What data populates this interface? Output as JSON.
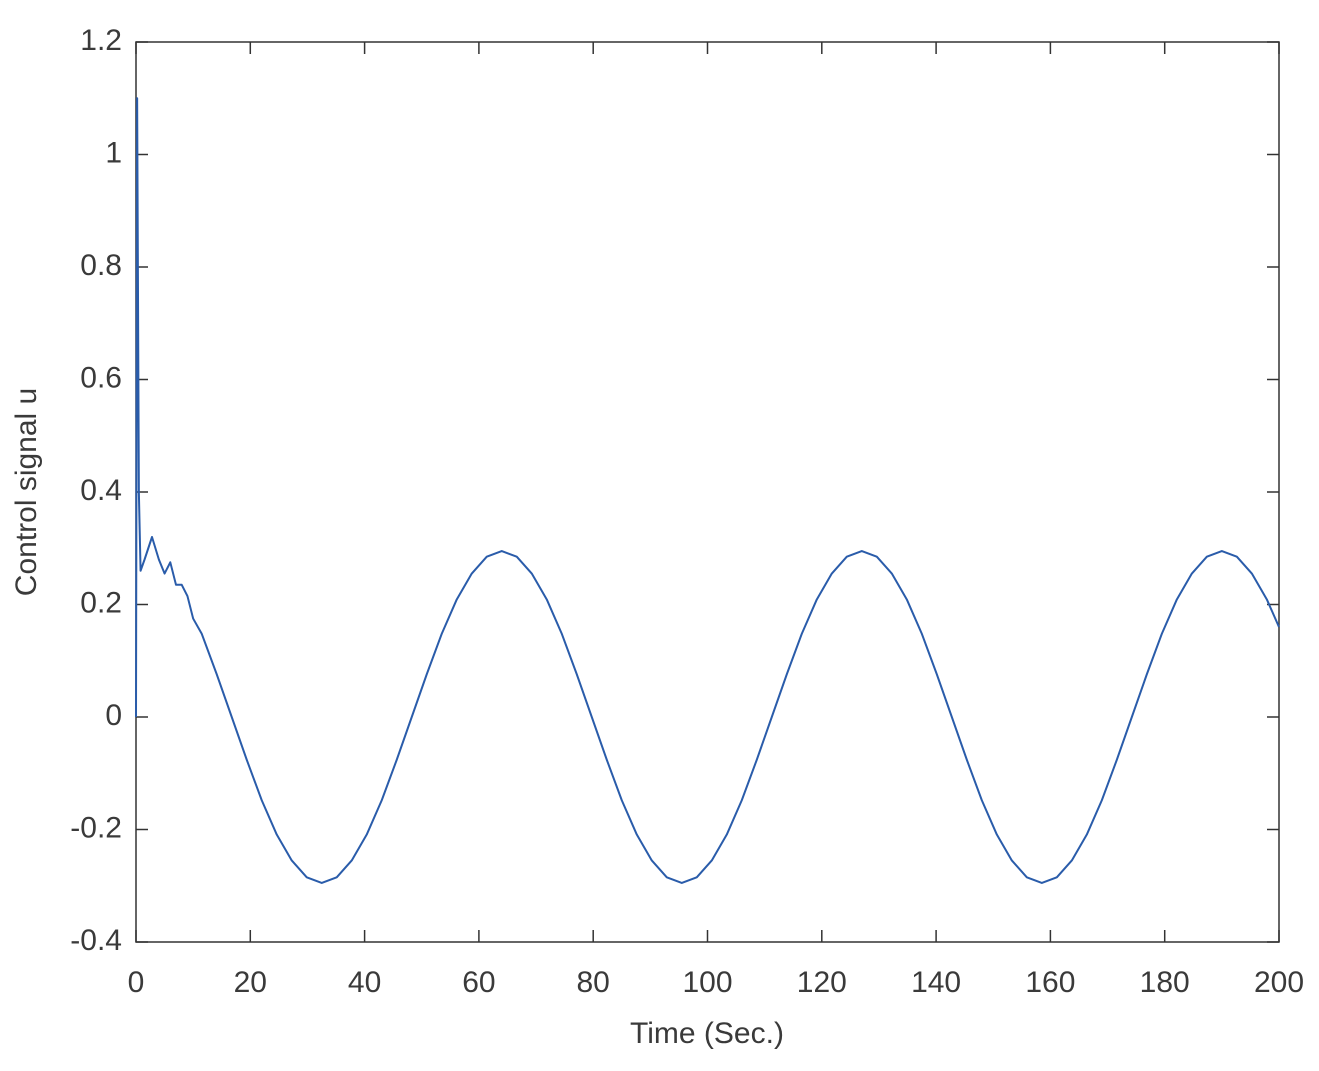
{
  "chart_data": {
    "type": "line",
    "xlabel": "Time (Sec.)",
    "ylabel": "Control signal u",
    "x": [
      0,
      0.2,
      0.5,
      0.8,
      1.5,
      2.8,
      4,
      5,
      6,
      7,
      8,
      9,
      10,
      11.5,
      14.125,
      16.75,
      19.375,
      22,
      24.625,
      27.25,
      29.875,
      32.5,
      35.125,
      37.75,
      40.375,
      43,
      45.625,
      48.25,
      50.875,
      53.5,
      56.125,
      58.75,
      61.375,
      64,
      66.625,
      69.25,
      71.875,
      74.5,
      77.125,
      79.75,
      82.375,
      85,
      87.625,
      90.25,
      92.875,
      95.5,
      98.125,
      100.75,
      103.375,
      106,
      108.625,
      111.25,
      113.875,
      116.5,
      119.125,
      121.75,
      124.375,
      127,
      129.625,
      132.25,
      134.875,
      137.5,
      140.125,
      142.75,
      145.375,
      148,
      150.625,
      153.25,
      155.875,
      158.5,
      161.125,
      163.75,
      166.375,
      169,
      171.625,
      174.25,
      176.875,
      179.5,
      182.125,
      184.75,
      187.375,
      190,
      192.625,
      195.25,
      197.875,
      200
    ],
    "values": [
      0,
      1.1,
      0.4,
      0.26,
      0.28,
      0.32,
      0.28,
      0.255,
      0.275,
      0.235,
      0.235,
      0.215,
      0.175,
      0.148,
      0.076,
      0,
      -0.076,
      -0.148,
      -0.209,
      -0.255,
      -0.285,
      -0.295,
      -0.285,
      -0.255,
      -0.209,
      -0.148,
      -0.076,
      0,
      0.076,
      0.148,
      0.209,
      0.255,
      0.285,
      0.295,
      0.285,
      0.255,
      0.209,
      0.148,
      0.076,
      0,
      -0.076,
      -0.148,
      -0.209,
      -0.255,
      -0.285,
      -0.295,
      -0.285,
      -0.255,
      -0.209,
      -0.148,
      -0.076,
      0,
      0.076,
      0.148,
      0.209,
      0.255,
      0.285,
      0.295,
      0.285,
      0.255,
      0.209,
      0.148,
      0.076,
      0,
      -0.076,
      -0.148,
      -0.209,
      -0.255,
      -0.285,
      -0.295,
      -0.285,
      -0.255,
      -0.209,
      -0.148,
      -0.076,
      0,
      0.076,
      0.148,
      0.209,
      0.255,
      0.285,
      0.295,
      0.285,
      0.255,
      0.209,
      0.16
    ],
    "color": "#2a5caa",
    "xlim": [
      0,
      200
    ],
    "xticks": [
      0,
      20,
      40,
      60,
      80,
      100,
      120,
      140,
      160,
      180,
      200
    ],
    "ylim": [
      -0.4,
      1.2
    ],
    "yticks": [
      -0.4,
      -0.2,
      0,
      0.2,
      0.4,
      0.6,
      0.8,
      1,
      1.2
    ],
    "grid": false
  }
}
